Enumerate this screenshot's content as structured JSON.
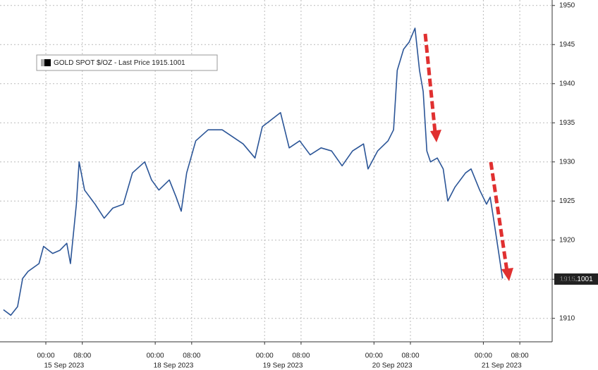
{
  "chart_data": {
    "type": "line",
    "legend": "GOLD SPOT $/OZ - Last Price 1915.1001",
    "last_price_label": "1915.1001",
    "x": [
      -9.3,
      -7.7,
      -6.2,
      -5.1,
      -3.9,
      -1.5,
      -0.5,
      1.5,
      3.1,
      4.6,
      5.4,
      6.7,
      7.3,
      8.5,
      10.8,
      12.8,
      14.7,
      17.0,
      19.0,
      21.7,
      23.2,
      24.8,
      27.1,
      28.6,
      29.7,
      30.9,
      32.9,
      35.6,
      38.7,
      41.0,
      43.3,
      45.9,
      47.5,
      49.5,
      51.5,
      53.4,
      55.7,
      58.0,
      60.4,
      62.7,
      65.0,
      67.3,
      69.7,
      70.7,
      72.8,
      75.1,
      76.3,
      77.1,
      78.5,
      79.7,
      81.0,
      82.0,
      82.8,
      83.6,
      84.4,
      85.9,
      87.2,
      88.2,
      89.8,
      92.1,
      93.3,
      95.2,
      96.7,
      97.5,
      98.3,
      99.5,
      100.2
    ],
    "series": [
      {
        "name": "GOLD SPOT $/OZ",
        "color": "#2b5597",
        "values": [
          1911.1,
          1910.4,
          1911.5,
          1915.1,
          1916,
          1917,
          1919.2,
          1918.3,
          1918.7,
          1919.6,
          1917,
          1924.6,
          1930,
          1926.4,
          1924.6,
          1922.8,
          1924.1,
          1924.6,
          1928.6,
          1930,
          1927.7,
          1926.4,
          1927.7,
          1925.5,
          1923.7,
          1928.6,
          1932.7,
          1934.1,
          1934.1,
          1933.2,
          1932.3,
          1930.5,
          1934.5,
          1935.4,
          1936.3,
          1931.8,
          1932.7,
          1930.9,
          1931.8,
          1931.4,
          1929.5,
          1931.4,
          1932.3,
          1929.1,
          1931.4,
          1932.7,
          1934.1,
          1941.7,
          1944.4,
          1945.3,
          1947.1,
          1941.7,
          1939,
          1931.4,
          1930,
          1930.5,
          1929.1,
          1925,
          1926.8,
          1928.6,
          1929.1,
          1926.4,
          1924.6,
          1925.5,
          1922.5,
          1917.9,
          1915.1
        ]
      }
    ],
    "xlim": [
      -10.06,
      111.1
    ],
    "xticks": [
      {
        "value": 0,
        "label": "00:00"
      },
      {
        "value": 8,
        "label": "08:00"
      },
      {
        "value": 24,
        "label": "00:00"
      },
      {
        "value": 32,
        "label": "08:00"
      },
      {
        "value": 48,
        "label": "00:00"
      },
      {
        "value": 56,
        "label": "08:00"
      },
      {
        "value": 72,
        "label": "00:00"
      },
      {
        "value": 80,
        "label": "08:00"
      },
      {
        "value": 96,
        "label": "00:00"
      },
      {
        "value": 104,
        "label": "08:00"
      }
    ],
    "xdates": [
      {
        "value": 4,
        "label": "15 Sep 2023"
      },
      {
        "value": 28,
        "label": "18 Sep 2023"
      },
      {
        "value": 52,
        "label": "19 Sep 2023"
      },
      {
        "value": 76,
        "label": "20 Sep 2023"
      },
      {
        "value": 100,
        "label": "21 Sep 2023"
      }
    ],
    "ylim": [
      1907,
      1950.7
    ],
    "yticks": [
      1910,
      1915,
      1920,
      1925,
      1930,
      1935,
      1940,
      1945,
      1950
    ],
    "grid": true
  }
}
